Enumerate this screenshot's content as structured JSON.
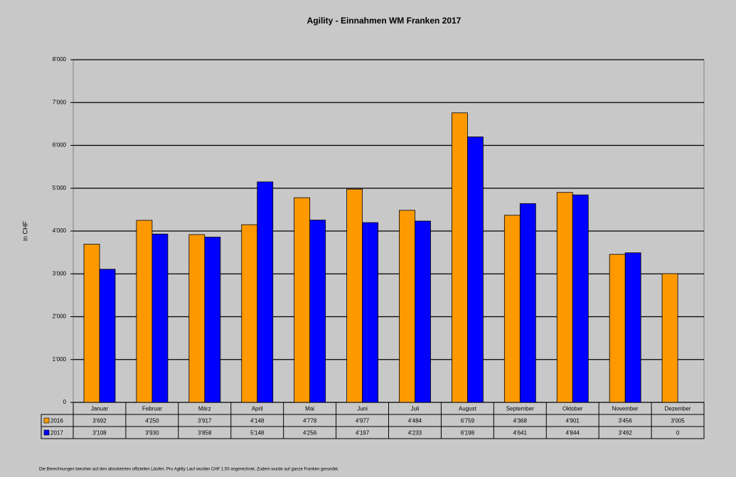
{
  "chart_data": {
    "type": "bar",
    "title": "Agility - Einnahmen WM Franken 2017",
    "y_label": "in CHF",
    "footnote": "Die Berechnungen beruhen auf den absolvierten offiziellen Läufen. Pro Agility Lauf wurden CHF 1.50 angerechnet. Zudem wurde auf ganze Franken gerundet.",
    "categories": [
      "Januar",
      "Februar",
      "März",
      "April",
      "Mai",
      "Juni",
      "Juli",
      "August",
      "September",
      "Oktober",
      "November",
      "Dezember"
    ],
    "series": [
      {
        "name": "2016",
        "color": "#ff9900",
        "values": [
          3692,
          4250,
          3917,
          4148,
          4778,
          4977,
          4484,
          6759,
          4368,
          4901,
          3456,
          3005
        ],
        "value_labels": [
          "3'692",
          "4'250",
          "3'917",
          "4'148",
          "4'778",
          "4'977",
          "4'484",
          "6'759",
          "4'368",
          "4'901",
          "3'456",
          "3'005"
        ]
      },
      {
        "name": "2017",
        "color": "#0000ff",
        "values": [
          3108,
          3930,
          3858,
          5148,
          4256,
          4197,
          4233,
          6198,
          4641,
          4844,
          3492,
          0
        ],
        "value_labels": [
          "3'108",
          "3'930",
          "3'858",
          "5'148",
          "4'256",
          "4'197",
          "4'233",
          "6'198",
          "4'641",
          "4'844",
          "3'492",
          "0"
        ]
      }
    ],
    "ylim": [
      0,
      8000
    ],
    "yticks": [
      0,
      {
        "value": 1000,
        "label": "1'000"
      },
      {
        "value": 2000,
        "label": "2'000"
      },
      {
        "value": 3000,
        "label": "3'000"
      },
      {
        "value": 4000,
        "label": "4'000"
      },
      {
        "value": 5000,
        "label": "5'000"
      },
      {
        "value": 6000,
        "label": "6'000"
      },
      {
        "value": 7000,
        "label": "7'000"
      },
      {
        "value": 8000,
        "label": "8'000"
      }
    ],
    "grid": true
  }
}
